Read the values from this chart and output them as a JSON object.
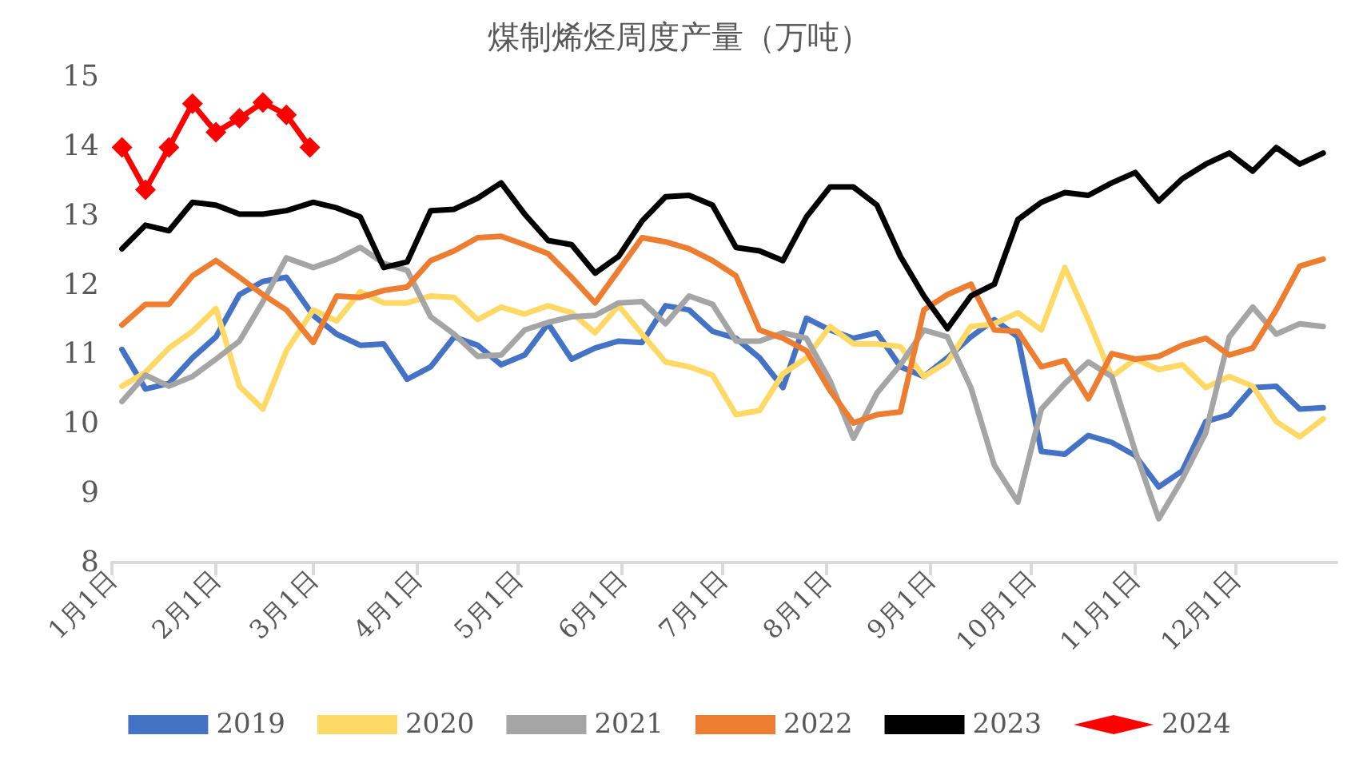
{
  "chart_data": {
    "type": "line",
    "title": "煤制烯烃周度产量（万吨）",
    "x": [
      "--01-04",
      "--01-11",
      "--01-18",
      "--01-25",
      "--02-01",
      "--02-08",
      "--02-15",
      "--02-22",
      "--03-01",
      "--03-08",
      "--03-15",
      "--03-22",
      "--03-29",
      "--04-05",
      "--04-12",
      "--04-19",
      "--04-26",
      "--05-03",
      "--05-10",
      "--05-17",
      "--05-24",
      "--05-31",
      "--06-07",
      "--06-14",
      "--06-21",
      "--06-28",
      "--07-05",
      "--07-12",
      "--07-19",
      "--07-26",
      "--08-02",
      "--08-09",
      "--08-16",
      "--08-23",
      "--08-30",
      "--09-06",
      "--09-13",
      "--09-20",
      "--09-27",
      "--10-04",
      "--10-11",
      "--10-18",
      "--10-25",
      "--11-01",
      "--11-08",
      "--11-15",
      "--11-22",
      "--11-29",
      "--12-06",
      "--12-13",
      "--12-20",
      "--12-27"
    ],
    "xlim": [
      "--01-01",
      "--12-31"
    ],
    "xticks": [
      {
        "value": "--01-01",
        "label": "1月1日"
      },
      {
        "value": "--02-01",
        "label": "2月1日"
      },
      {
        "value": "--03-01",
        "label": "3月1日"
      },
      {
        "value": "--04-01",
        "label": "4月1日"
      },
      {
        "value": "--05-01",
        "label": "5月1日"
      },
      {
        "value": "--06-01",
        "label": "6月1日"
      },
      {
        "value": "--07-01",
        "label": "7月1日"
      },
      {
        "value": "--08-01",
        "label": "8月1日"
      },
      {
        "value": "--09-01",
        "label": "9月1日"
      },
      {
        "value": "--10-01",
        "label": "10月1日"
      },
      {
        "value": "--11-01",
        "label": "11月1日"
      },
      {
        "value": "--12-01",
        "label": "12月1日"
      }
    ],
    "ylim": [
      8,
      15
    ],
    "yticks": [
      8,
      9,
      10,
      11,
      12,
      13,
      14,
      15
    ],
    "grid": false,
    "legend": "bottom",
    "marker": "none",
    "line_style": "solid",
    "series": [
      {
        "name": "2019",
        "color": "#4472c4",
        "values": [
          11.07,
          10.5,
          10.58,
          10.95,
          11.25,
          11.86,
          12.05,
          12.11,
          11.56,
          11.29,
          11.13,
          11.15,
          10.64,
          10.82,
          11.25,
          11.13,
          10.85,
          10.99,
          11.44,
          10.93,
          11.09,
          11.19,
          11.17,
          11.7,
          11.64,
          11.33,
          11.23,
          10.95,
          10.52,
          11.52,
          11.35,
          11.23,
          11.31,
          10.82,
          10.68,
          10.95,
          11.25,
          11.5,
          11.25,
          9.6,
          9.56,
          9.83,
          9.73,
          9.54,
          9.09,
          9.32,
          10.03,
          10.13,
          10.52,
          10.54,
          10.21,
          10.23
        ]
      },
      {
        "name": "2020",
        "color": "#ffd966",
        "values": [
          10.54,
          10.74,
          11.09,
          11.33,
          11.66,
          10.54,
          10.21,
          11.05,
          11.64,
          11.48,
          11.9,
          11.74,
          11.74,
          11.84,
          11.82,
          11.5,
          11.68,
          11.58,
          11.7,
          11.6,
          11.31,
          11.7,
          11.29,
          10.89,
          10.82,
          10.7,
          10.13,
          10.19,
          10.72,
          10.95,
          11.4,
          11.15,
          11.15,
          11.11,
          10.68,
          10.89,
          11.4,
          11.44,
          11.6,
          11.35,
          12.25,
          11.5,
          10.68,
          10.93,
          10.78,
          10.85,
          10.52,
          10.68,
          10.54,
          10.03,
          9.81,
          10.07
        ]
      },
      {
        "name": "2021",
        "color": "#a5a5a5",
        "values": [
          10.32,
          10.7,
          10.54,
          10.68,
          10.93,
          11.19,
          11.76,
          12.39,
          12.25,
          12.37,
          12.54,
          12.31,
          12.21,
          11.54,
          11.29,
          10.97,
          10.99,
          11.35,
          11.46,
          11.54,
          11.56,
          11.74,
          11.76,
          11.44,
          11.84,
          11.72,
          11.19,
          11.19,
          11.31,
          11.23,
          10.62,
          9.79,
          10.44,
          10.85,
          11.35,
          11.25,
          10.52,
          9.4,
          8.87,
          10.21,
          10.58,
          10.89,
          10.68,
          9.6,
          8.63,
          9.2,
          9.87,
          11.25,
          11.68,
          11.29,
          11.44,
          11.4
        ]
      },
      {
        "name": "2022",
        "color": "#ed7d31",
        "values": [
          11.42,
          11.72,
          11.72,
          12.13,
          12.35,
          12.11,
          11.86,
          11.64,
          11.17,
          11.84,
          11.82,
          11.92,
          11.97,
          12.35,
          12.49,
          12.68,
          12.7,
          12.58,
          12.45,
          12.11,
          11.74,
          12.21,
          12.68,
          12.62,
          12.52,
          12.35,
          12.13,
          11.35,
          11.23,
          11.05,
          10.48,
          10.01,
          10.13,
          10.17,
          11.64,
          11.86,
          12.01,
          11.35,
          11.33,
          10.82,
          10.91,
          10.36,
          11.01,
          10.93,
          10.97,
          11.13,
          11.23,
          10.99,
          11.09,
          11.64,
          12.27,
          12.37
        ]
      },
      {
        "name": "2023",
        "color": "#000000",
        "values": [
          12.52,
          12.86,
          12.78,
          13.19,
          13.15,
          13.02,
          13.02,
          13.07,
          13.19,
          13.11,
          12.98,
          12.25,
          12.33,
          13.07,
          13.09,
          13.25,
          13.47,
          13.02,
          12.64,
          12.58,
          12.17,
          12.41,
          12.92,
          13.27,
          13.29,
          13.15,
          12.54,
          12.49,
          12.35,
          12.98,
          13.41,
          13.41,
          13.15,
          12.41,
          11.84,
          11.37,
          11.84,
          12.01,
          12.94,
          13.19,
          13.33,
          13.29,
          13.47,
          13.62,
          13.21,
          13.53,
          13.74,
          13.9,
          13.64,
          13.98,
          13.74,
          13.9
        ]
      },
      {
        "name": "2024",
        "color": "#ff0000",
        "marker": "diamond",
        "x": [
          "--01-04",
          "--01-11",
          "--01-18",
          "--01-25",
          "--02-01",
          "--02-08",
          "--02-15",
          "--02-22",
          "--02-29"
        ],
        "values": [
          13.98,
          13.37,
          13.98,
          14.61,
          14.2,
          14.4,
          14.63,
          14.45,
          13.98
        ]
      }
    ]
  }
}
